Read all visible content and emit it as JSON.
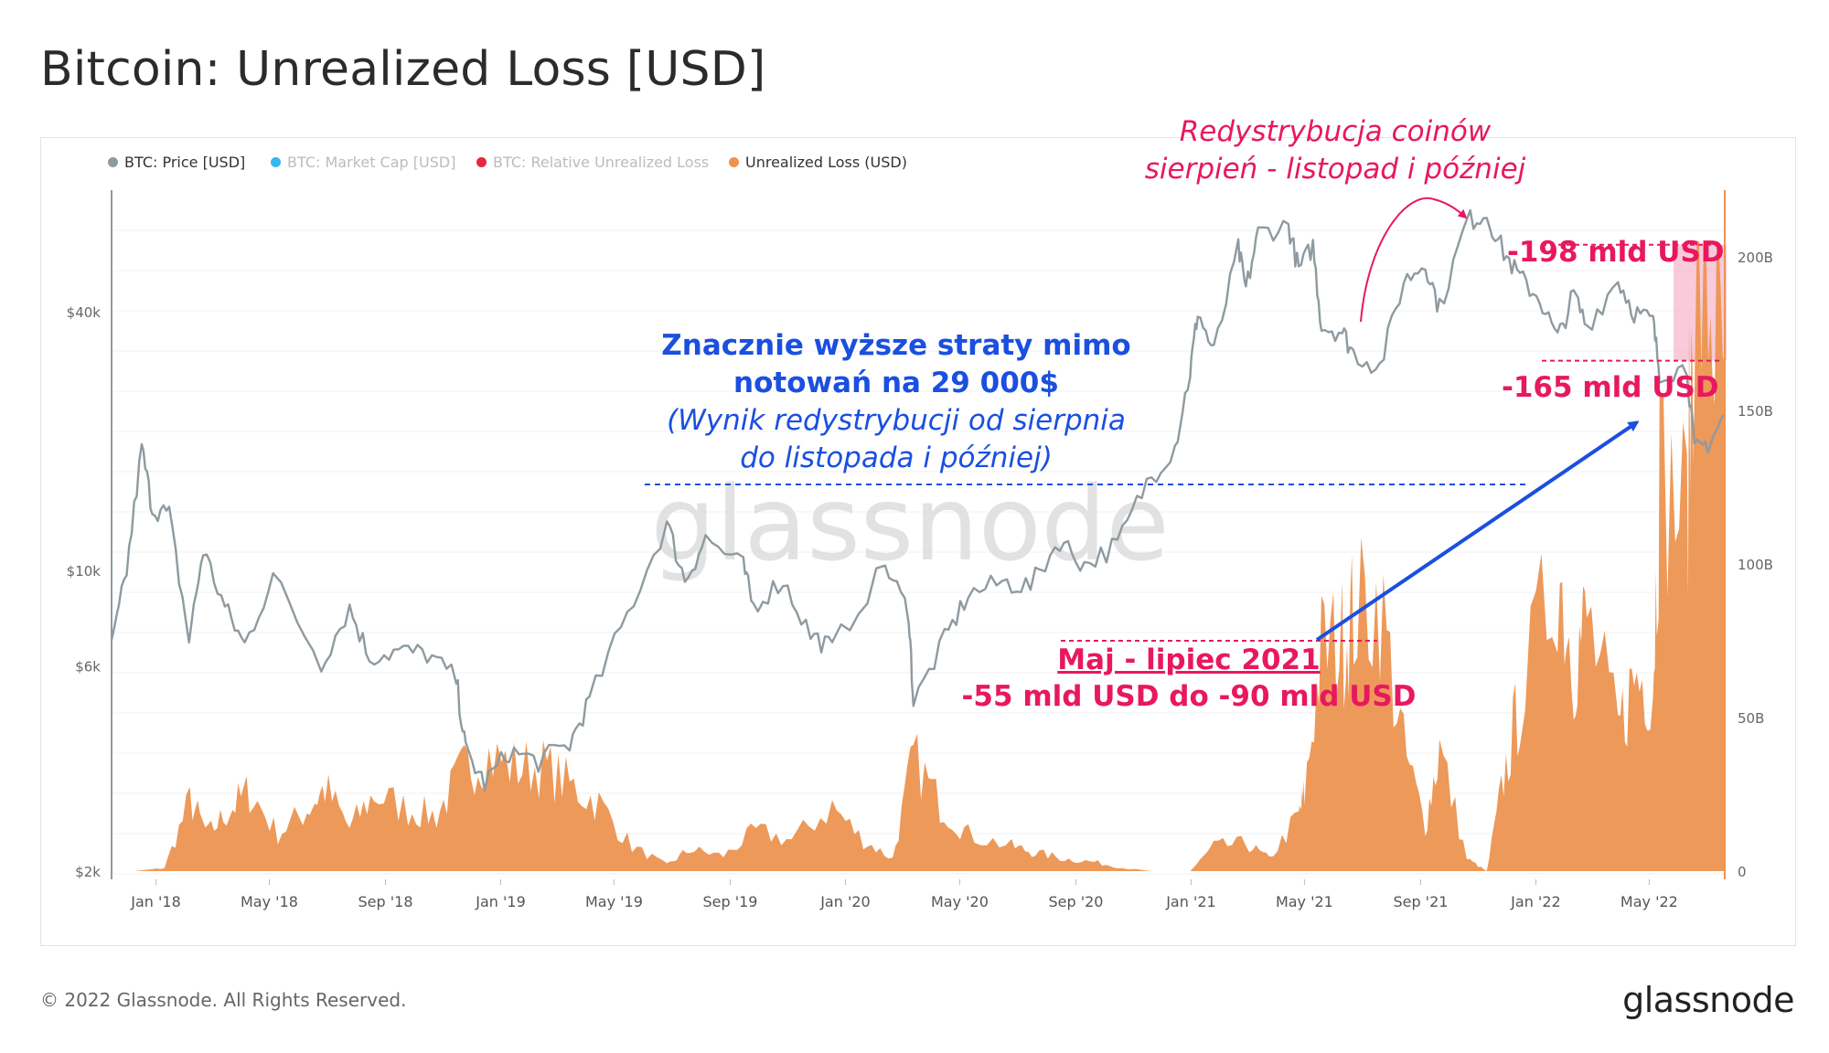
{
  "title": "Bitcoin: Unrealized Loss [USD]",
  "footer": {
    "copyright": "© 2022 Glassnode. All Rights Reserved.",
    "logo": "glassnode"
  },
  "watermark": "glassnode",
  "legend": [
    {
      "label": "BTC: Price [USD]",
      "color": "#8e9aa0",
      "active": true
    },
    {
      "label": "BTC: Market Cap [USD]",
      "color": "#36b7ee",
      "active": false
    },
    {
      "label": "BTC: Relative Unrealized Loss",
      "color": "#e8273f",
      "active": false
    },
    {
      "label": "Unrealized Loss (USD)",
      "color": "#ec9450",
      "active": true
    }
  ],
  "annotations": {
    "blue_line1": "Znacznie wyższe straty mimo",
    "blue_line2": "notowań na 29 000$",
    "blue_line3": "(Wynik redystrybucji od sierpnia",
    "blue_line4": "do listopada i później)",
    "redis_line1": "Redystrybucja coinów",
    "redis_line2": "sierpień - listopad i później",
    "loss_198": "-198 mld USD",
    "loss_165": "-165 mld USD",
    "may_line1": "Maj - lipiec 2021",
    "may_line2": "-55 mld USD do -90 mld USD"
  },
  "chart_data": {
    "type": "line",
    "x_ticks": [
      "Jan '18",
      "May '18",
      "Sep '18",
      "Jan '19",
      "May '19",
      "Sep '19",
      "Jan '20",
      "May '20",
      "Sep '20",
      "Jan '21",
      "May '21",
      "Sep '21",
      "Jan '22",
      "May '22"
    ],
    "x_range": [
      "2017-11-15",
      "2022-07-20"
    ],
    "y_left": {
      "scale": "log",
      "ticks": [
        "$2k",
        "$6k",
        "$10k",
        "$40k"
      ],
      "tick_values": [
        2000,
        6000,
        10000,
        40000
      ]
    },
    "y_right": {
      "scale": "linear",
      "ticks": [
        "0",
        "50B",
        "100B",
        "150B",
        "200B"
      ],
      "tick_values": [
        0,
        50,
        100,
        150,
        200
      ],
      "range": [
        0,
        200
      ]
    },
    "series": [
      {
        "name": "BTC: Price [USD]",
        "axis": "left",
        "color": "#8e9aa0",
        "points": [
          [
            "2017-11-15",
            6600
          ],
          [
            "2017-12-01",
            10000
          ],
          [
            "2017-12-17",
            19300
          ],
          [
            "2017-12-28",
            14000
          ],
          [
            "2018-01-15",
            13500
          ],
          [
            "2018-02-05",
            6900
          ],
          [
            "2018-02-20",
            11200
          ],
          [
            "2018-03-15",
            8200
          ],
          [
            "2018-04-05",
            6700
          ],
          [
            "2018-05-05",
            9700
          ],
          [
            "2018-06-25",
            6100
          ],
          [
            "2018-07-25",
            8200
          ],
          [
            "2018-08-15",
            6300
          ],
          [
            "2018-09-15",
            6500
          ],
          [
            "2018-10-15",
            6400
          ],
          [
            "2018-11-15",
            5600
          ],
          [
            "2018-11-25",
            3800
          ],
          [
            "2018-12-15",
            3200
          ],
          [
            "2019-01-10",
            3800
          ],
          [
            "2019-02-10",
            3600
          ],
          [
            "2019-03-15",
            3950
          ],
          [
            "2019-04-05",
            5000
          ],
          [
            "2019-05-15",
            7900
          ],
          [
            "2019-06-26",
            12900
          ],
          [
            "2019-07-15",
            9500
          ],
          [
            "2019-08-06",
            11900
          ],
          [
            "2019-09-15",
            10200
          ],
          [
            "2019-09-25",
            8300
          ],
          [
            "2019-10-27",
            9500
          ],
          [
            "2019-11-25",
            7100
          ],
          [
            "2019-12-18",
            6600
          ],
          [
            "2020-02-12",
            10300
          ],
          [
            "2020-03-08",
            8000
          ],
          [
            "2020-03-13",
            4900
          ],
          [
            "2020-04-15",
            6900
          ],
          [
            "2020-05-10",
            8800
          ],
          [
            "2020-06-15",
            9400
          ],
          [
            "2020-07-15",
            9200
          ],
          [
            "2020-08-15",
            11800
          ],
          [
            "2020-09-10",
            10300
          ],
          [
            "2020-10-15",
            11500
          ],
          [
            "2020-11-15",
            16000
          ],
          [
            "2020-12-15",
            19500
          ],
          [
            "2020-12-31",
            29000
          ],
          [
            "2021-01-08",
            40000
          ],
          [
            "2021-01-25",
            32000
          ],
          [
            "2021-02-20",
            56000
          ],
          [
            "2021-02-28",
            45000
          ],
          [
            "2021-03-13",
            61000
          ],
          [
            "2021-04-14",
            63500
          ],
          [
            "2021-04-25",
            50000
          ],
          [
            "2021-05-10",
            57000
          ],
          [
            "2021-05-19",
            37000
          ],
          [
            "2021-06-10",
            36000
          ],
          [
            "2021-06-22",
            32000
          ],
          [
            "2021-07-20",
            29800
          ],
          [
            "2021-08-14",
            47000
          ],
          [
            "2021-09-06",
            52000
          ],
          [
            "2021-09-21",
            40700
          ],
          [
            "2021-10-20",
            65000
          ],
          [
            "2021-11-10",
            67500
          ],
          [
            "2021-11-28",
            55000
          ],
          [
            "2021-12-15",
            48000
          ],
          [
            "2022-01-05",
            43000
          ],
          [
            "2022-01-24",
            34500
          ],
          [
            "2022-02-10",
            44000
          ],
          [
            "2022-02-24",
            37000
          ],
          [
            "2022-03-29",
            47500
          ],
          [
            "2022-04-15",
            40000
          ],
          [
            "2022-05-05",
            38000
          ],
          [
            "2022-05-12",
            29000
          ],
          [
            "2022-06-10",
            29500
          ],
          [
            "2022-06-18",
            19000
          ],
          [
            "2022-07-05",
            20000
          ],
          [
            "2022-07-20",
            23000
          ]
        ]
      },
      {
        "name": "Unrealized Loss (USD)",
        "axis": "right",
        "color": "#ec9450",
        "unit": "B USD",
        "points": [
          [
            "2017-11-15",
            0
          ],
          [
            "2017-12-10",
            0
          ],
          [
            "2018-01-10",
            1
          ],
          [
            "2018-02-06",
            23
          ],
          [
            "2018-02-25",
            12
          ],
          [
            "2018-03-20",
            20
          ],
          [
            "2018-04-10",
            26
          ],
          [
            "2018-05-10",
            12
          ],
          [
            "2018-06-10",
            20
          ],
          [
            "2018-06-29",
            27
          ],
          [
            "2018-07-25",
            14
          ],
          [
            "2018-08-20",
            25
          ],
          [
            "2018-09-25",
            20
          ],
          [
            "2018-10-25",
            18
          ],
          [
            "2018-11-20",
            32
          ],
          [
            "2018-12-15",
            38
          ],
          [
            "2019-01-15",
            34
          ],
          [
            "2019-02-15",
            34
          ],
          [
            "2019-03-15",
            28
          ],
          [
            "2019-04-15",
            22
          ],
          [
            "2019-05-20",
            8
          ],
          [
            "2019-06-26",
            2
          ],
          [
            "2019-07-20",
            7
          ],
          [
            "2019-08-25",
            5
          ],
          [
            "2019-09-28",
            13
          ],
          [
            "2019-11-05",
            10
          ],
          [
            "2019-12-18",
            21
          ],
          [
            "2020-01-20",
            10
          ],
          [
            "2020-02-20",
            4
          ],
          [
            "2020-03-13",
            37
          ],
          [
            "2020-04-10",
            22
          ],
          [
            "2020-05-10",
            12
          ],
          [
            "2020-06-25",
            8
          ],
          [
            "2020-07-20",
            6
          ],
          [
            "2020-08-20",
            4
          ],
          [
            "2020-09-20",
            3
          ],
          [
            "2020-10-20",
            1
          ],
          [
            "2020-11-20",
            0
          ],
          [
            "2020-12-31",
            0
          ],
          [
            "2021-01-25",
            8
          ],
          [
            "2021-02-28",
            9
          ],
          [
            "2021-03-25",
            4
          ],
          [
            "2021-04-25",
            18
          ],
          [
            "2021-05-01",
            25
          ],
          [
            "2021-05-19",
            72
          ],
          [
            "2021-06-10",
            75
          ],
          [
            "2021-06-22",
            84
          ],
          [
            "2021-07-20",
            88
          ],
          [
            "2021-08-14",
            40
          ],
          [
            "2021-09-06",
            15
          ],
          [
            "2021-09-21",
            40
          ],
          [
            "2021-10-20",
            4
          ],
          [
            "2021-11-10",
            0
          ],
          [
            "2021-11-28",
            30
          ],
          [
            "2021-12-15",
            55
          ],
          [
            "2022-01-24",
            100
          ],
          [
            "2022-02-10",
            68
          ],
          [
            "2022-02-24",
            82
          ],
          [
            "2022-03-29",
            45
          ],
          [
            "2022-04-15",
            63
          ],
          [
            "2022-05-05",
            62
          ],
          [
            "2022-05-12",
            128
          ],
          [
            "2022-06-10",
            115
          ],
          [
            "2022-06-18",
            198
          ],
          [
            "2022-07-05",
            185
          ],
          [
            "2022-07-20",
            165
          ]
        ]
      }
    ],
    "reference_levels": {
      "loss_high": 198,
      "loss_low": 165,
      "price_level": 29000
    }
  }
}
